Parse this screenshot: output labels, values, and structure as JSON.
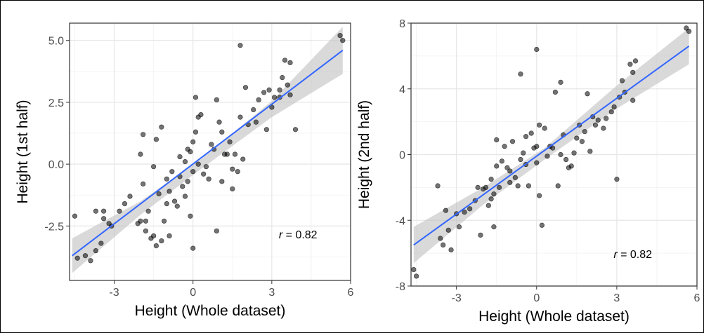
{
  "chart_data": [
    {
      "type": "scatter",
      "xlabel": "Height (Whole dataset)",
      "ylabel": "Height (1st half)",
      "xlim": [
        -4.7,
        6.0
      ],
      "ylim": [
        -4.7,
        5.7
      ],
      "xticks": [
        -3,
        0,
        3,
        6
      ],
      "xtick_labels": [
        "-3",
        "0",
        "3",
        "6"
      ],
      "yticks": [
        -2.5,
        0,
        2.5,
        5
      ],
      "ytick_labels": [
        "-2.5",
        "0.0",
        "2.5",
        "5.0"
      ],
      "grid": true,
      "annotation": {
        "text": "= 0.82",
        "symbol": "r",
        "x": 4.0,
        "y": -3.0
      },
      "points": [
        [
          -4.5,
          -2.1
        ],
        [
          -4.4,
          -3.8
        ],
        [
          -4.1,
          -3.7
        ],
        [
          -3.9,
          -3.9
        ],
        [
          -3.7,
          -3.5
        ],
        [
          -3.7,
          -1.9
        ],
        [
          -3.5,
          -3.2
        ],
        [
          -3.4,
          -2.2
        ],
        [
          -3.4,
          -1.9
        ],
        [
          -3.2,
          -2.4
        ],
        [
          -3.1,
          -2.5
        ],
        [
          -2.8,
          -1.9
        ],
        [
          -2.6,
          -1.6
        ],
        [
          -2.4,
          -1.3
        ],
        [
          -2.1,
          -2.4
        ],
        [
          -2.0,
          -2.3
        ],
        [
          -2.0,
          0.4
        ],
        [
          -1.9,
          -0.8
        ],
        [
          -1.9,
          1.2
        ],
        [
          -1.8,
          -2.3
        ],
        [
          -1.8,
          -2.7
        ],
        [
          -1.7,
          -1.9
        ],
        [
          -1.6,
          -3.0
        ],
        [
          -1.5,
          -0.1
        ],
        [
          -1.5,
          -2.9
        ],
        [
          -1.4,
          1.0
        ],
        [
          -1.4,
          -3.3
        ],
        [
          -1.3,
          -1.2
        ],
        [
          -1.2,
          1.5
        ],
        [
          -1.2,
          -3.1
        ],
        [
          -1.1,
          -2.3
        ],
        [
          -1.0,
          -1.6
        ],
        [
          -1.0,
          -0.6
        ],
        [
          -0.9,
          -1.1
        ],
        [
          -0.9,
          -2.9
        ],
        [
          -0.8,
          -0.3
        ],
        [
          -0.7,
          -1.5
        ],
        [
          -0.6,
          -1.7
        ],
        [
          -0.5,
          0.3
        ],
        [
          -0.5,
          -0.5
        ],
        [
          -0.4,
          -0.9
        ],
        [
          -0.3,
          -1.3
        ],
        [
          -0.3,
          0.1
        ],
        [
          -0.2,
          0.6
        ],
        [
          -0.2,
          -0.7
        ],
        [
          -0.1,
          0.5
        ],
        [
          -0.1,
          -2.1
        ],
        [
          0.0,
          -3.4
        ],
        [
          0.0,
          0.9
        ],
        [
          0.0,
          -0.3
        ],
        [
          0.1,
          2.7
        ],
        [
          0.1,
          1.3
        ],
        [
          0.2,
          1.9
        ],
        [
          0.2,
          0.0
        ],
        [
          0.3,
          2.0
        ],
        [
          0.4,
          -0.4
        ],
        [
          0.5,
          -0.1
        ],
        [
          0.6,
          -0.6
        ],
        [
          0.7,
          0.8
        ],
        [
          0.8,
          0.6
        ],
        [
          0.9,
          -2.7
        ],
        [
          0.9,
          2.6
        ],
        [
          1.0,
          1.7
        ],
        [
          1.1,
          1.3
        ],
        [
          1.1,
          -0.7
        ],
        [
          1.2,
          0.4
        ],
        [
          1.3,
          0.4
        ],
        [
          1.4,
          0.9
        ],
        [
          1.5,
          -0.2
        ],
        [
          1.5,
          -1.0
        ],
        [
          1.6,
          0.4
        ],
        [
          1.7,
          -0.3
        ],
        [
          1.8,
          4.8
        ],
        [
          1.8,
          1.9
        ],
        [
          1.9,
          0.2
        ],
        [
          2.0,
          3.1
        ],
        [
          2.1,
          1.6
        ],
        [
          2.3,
          2.2
        ],
        [
          2.4,
          1.7
        ],
        [
          2.5,
          2.6
        ],
        [
          2.7,
          2.9
        ],
        [
          2.8,
          1.4
        ],
        [
          2.9,
          3.0
        ],
        [
          3.0,
          2.3
        ],
        [
          3.1,
          2.7
        ],
        [
          3.3,
          3.0
        ],
        [
          3.3,
          2.7
        ],
        [
          3.4,
          3.5
        ],
        [
          3.5,
          4.2
        ],
        [
          3.6,
          3.2
        ],
        [
          3.7,
          4.1
        ],
        [
          3.7,
          2.8
        ],
        [
          3.9,
          1.4
        ],
        [
          5.6,
          5.2
        ],
        [
          5.7,
          5.0
        ]
      ],
      "fit": {
        "x0": -4.6,
        "y0": -3.7,
        "x1": 5.7,
        "y1": 4.6
      },
      "band": {
        "x": [
          -4.6,
          -2.0,
          0.3,
          3.0,
          5.7
        ],
        "lower": [
          -4.4,
          -2.05,
          -0.2,
          1.9,
          3.65
        ],
        "upper": [
          -3.0,
          -1.5,
          0.2,
          2.55,
          5.55
        ]
      }
    },
    {
      "type": "scatter",
      "xlabel": "Height (Whole dataset)",
      "ylabel": "Height (2nd half)",
      "xlim": [
        -4.7,
        6.0
      ],
      "ylim": [
        -8.0,
        8.0
      ],
      "xticks": [
        -3,
        0,
        3,
        6
      ],
      "xtick_labels": [
        "-3",
        "0",
        "3",
        "6"
      ],
      "yticks": [
        -8,
        -4,
        0,
        4,
        8
      ],
      "ytick_labels": [
        "-8",
        "-4",
        "0",
        "4",
        "8"
      ],
      "grid": true,
      "annotation": {
        "text": "= 0.82",
        "symbol": "r",
        "x": 3.6,
        "y": -6.3
      },
      "points": [
        [
          -4.6,
          -7.0
        ],
        [
          -4.5,
          -7.4
        ],
        [
          -3.7,
          -1.9
        ],
        [
          -3.6,
          -5.1
        ],
        [
          -3.5,
          -5.5
        ],
        [
          -3.4,
          -3.4
        ],
        [
          -3.3,
          -4.6
        ],
        [
          -3.2,
          -5.8
        ],
        [
          -3.0,
          -3.6
        ],
        [
          -2.9,
          -4.4
        ],
        [
          -2.7,
          -3.5
        ],
        [
          -2.5,
          -3.3
        ],
        [
          -2.3,
          -2.8
        ],
        [
          -2.2,
          -2.0
        ],
        [
          -2.1,
          -4.9
        ],
        [
          -2.0,
          -2.1
        ],
        [
          -1.9,
          -2.0
        ],
        [
          -1.8,
          -3.1
        ],
        [
          -1.7,
          -1.5
        ],
        [
          -1.7,
          -2.7
        ],
        [
          -1.6,
          -2.4
        ],
        [
          -1.6,
          -4.4
        ],
        [
          -1.5,
          -0.7
        ],
        [
          -1.5,
          0.9
        ],
        [
          -1.4,
          -2.0
        ],
        [
          -1.3,
          -0.4
        ],
        [
          -1.2,
          0.5
        ],
        [
          -1.1,
          -0.8
        ],
        [
          -1.0,
          -1.0
        ],
        [
          -1.0,
          -1.7
        ],
        [
          -0.9,
          0.8
        ],
        [
          -0.8,
          -1.4
        ],
        [
          -0.7,
          -1.9
        ],
        [
          -0.6,
          -0.3
        ],
        [
          -0.6,
          4.9
        ],
        [
          -0.5,
          0.1
        ],
        [
          -0.4,
          1.1
        ],
        [
          -0.4,
          -0.6
        ],
        [
          -0.3,
          -1.9
        ],
        [
          -0.2,
          1.3
        ],
        [
          -0.1,
          0.4
        ],
        [
          0.0,
          0.5
        ],
        [
          0.0,
          6.4
        ],
        [
          0.0,
          -0.5
        ],
        [
          0.1,
          1.8
        ],
        [
          0.1,
          -2.5
        ],
        [
          0.2,
          -4.3
        ],
        [
          0.3,
          1.6
        ],
        [
          0.4,
          -0.1
        ],
        [
          0.5,
          0.5
        ],
        [
          0.6,
          0.4
        ],
        [
          0.7,
          3.8
        ],
        [
          0.8,
          -1.9
        ],
        [
          0.9,
          4.4
        ],
        [
          0.9,
          0.0
        ],
        [
          1.0,
          1.2
        ],
        [
          1.1,
          -0.3
        ],
        [
          1.2,
          -0.8
        ],
        [
          1.3,
          -0.7
        ],
        [
          1.4,
          0.1
        ],
        [
          1.5,
          1.0
        ],
        [
          1.6,
          1.8
        ],
        [
          1.7,
          0.8
        ],
        [
          1.8,
          1.4
        ],
        [
          1.9,
          3.7
        ],
        [
          2.0,
          0.2
        ],
        [
          2.1,
          2.3
        ],
        [
          2.2,
          1.8
        ],
        [
          2.3,
          2.1
        ],
        [
          2.5,
          1.6
        ],
        [
          2.6,
          2.2
        ],
        [
          2.8,
          2.6
        ],
        [
          2.9,
          2.9
        ],
        [
          3.0,
          -1.5
        ],
        [
          3.1,
          3.5
        ],
        [
          3.2,
          4.5
        ],
        [
          3.3,
          3.8
        ],
        [
          3.5,
          5.5
        ],
        [
          3.6,
          3.3
        ],
        [
          3.6,
          5.0
        ],
        [
          3.7,
          5.7
        ],
        [
          5.6,
          7.7
        ],
        [
          5.7,
          7.5
        ]
      ],
      "fit": {
        "x0": -4.6,
        "y0": -5.5,
        "x1": 5.7,
        "y1": 6.6
      },
      "band": {
        "x": [
          -4.6,
          -2.0,
          0.3,
          3.0,
          5.7
        ],
        "lower": [
          -6.6,
          -3.05,
          -0.3,
          2.8,
          5.5
        ],
        "upper": [
          -4.4,
          -2.0,
          0.4,
          4.2,
          7.7
        ]
      }
    }
  ]
}
